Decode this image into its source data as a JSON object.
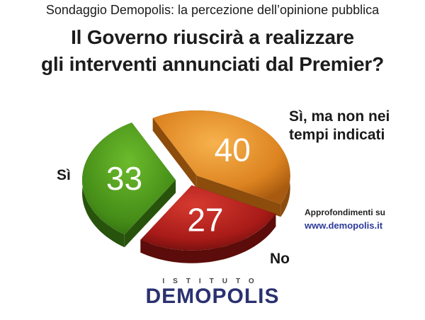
{
  "header": "Sondaggio Demopolis: la percezione dell’opinione pubblica",
  "title_lines": [
    "Il Governo riuscirà a realizzare",
    "gli interventi annunciati dal Premier?"
  ],
  "chart_data": {
    "type": "pie",
    "slices": [
      {
        "label": "Sì, ma non nei tempi indicati",
        "value": 40,
        "color": "#e6952a"
      },
      {
        "label": "No",
        "value": 27,
        "color": "#b5221f"
      },
      {
        "label": "Sì",
        "value": 33,
        "color": "#4e9a1e"
      }
    ]
  },
  "labels": {
    "si": "Sì",
    "si_ma_non_line1": "Sì, ma non nei",
    "si_ma_non_line2": "tempi indicati",
    "no": "No"
  },
  "approfondimenti": "Approfondimenti  su",
  "link": "www.demopolis.it",
  "logo": {
    "istituto": "ISTITUTO",
    "name": "DEMOPOLIS"
  }
}
